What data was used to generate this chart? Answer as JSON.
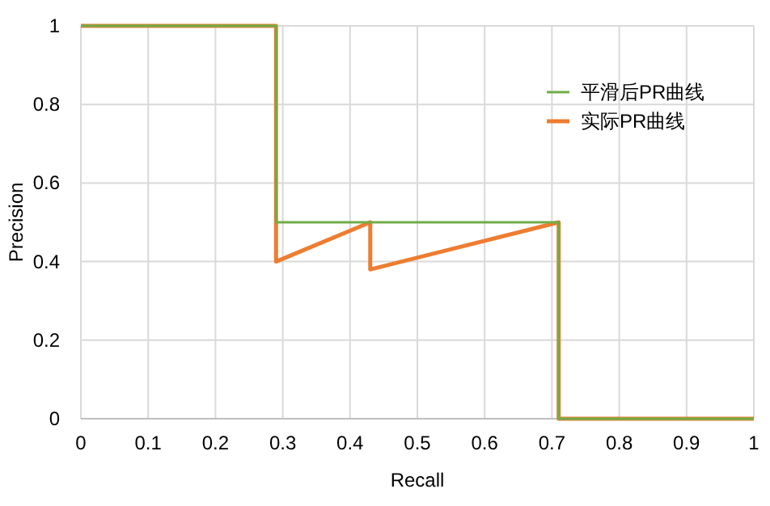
{
  "chart_data": {
    "type": "line",
    "xlabel": "Recall",
    "ylabel": "Precision",
    "xlim": [
      0,
      1
    ],
    "ylim": [
      0,
      1
    ],
    "xticks": [
      0,
      0.1,
      0.2,
      0.3,
      0.4,
      0.5,
      0.6,
      0.7,
      0.8,
      0.9,
      1
    ],
    "yticks": [
      0,
      0.2,
      0.4,
      0.6,
      0.8,
      1
    ],
    "grid": true,
    "legend": "top right",
    "marker": "none",
    "line_style": "solid",
    "series": [
      {
        "name": "平滑后PR曲线",
        "color": "#70ad47",
        "x": [
          0,
          0.29,
          0.29,
          0.71,
          0.71,
          1
        ],
        "values": [
          1,
          1,
          0.5,
          0.5,
          0,
          0
        ]
      },
      {
        "name": "实际PR曲线",
        "color": "#ed7d31",
        "x": [
          0,
          0.29,
          0.29,
          0.43,
          0.43,
          0.71,
          0.71,
          1
        ],
        "values": [
          1,
          1,
          0.4,
          0.5,
          0.38,
          0.5,
          0,
          0
        ]
      }
    ]
  }
}
